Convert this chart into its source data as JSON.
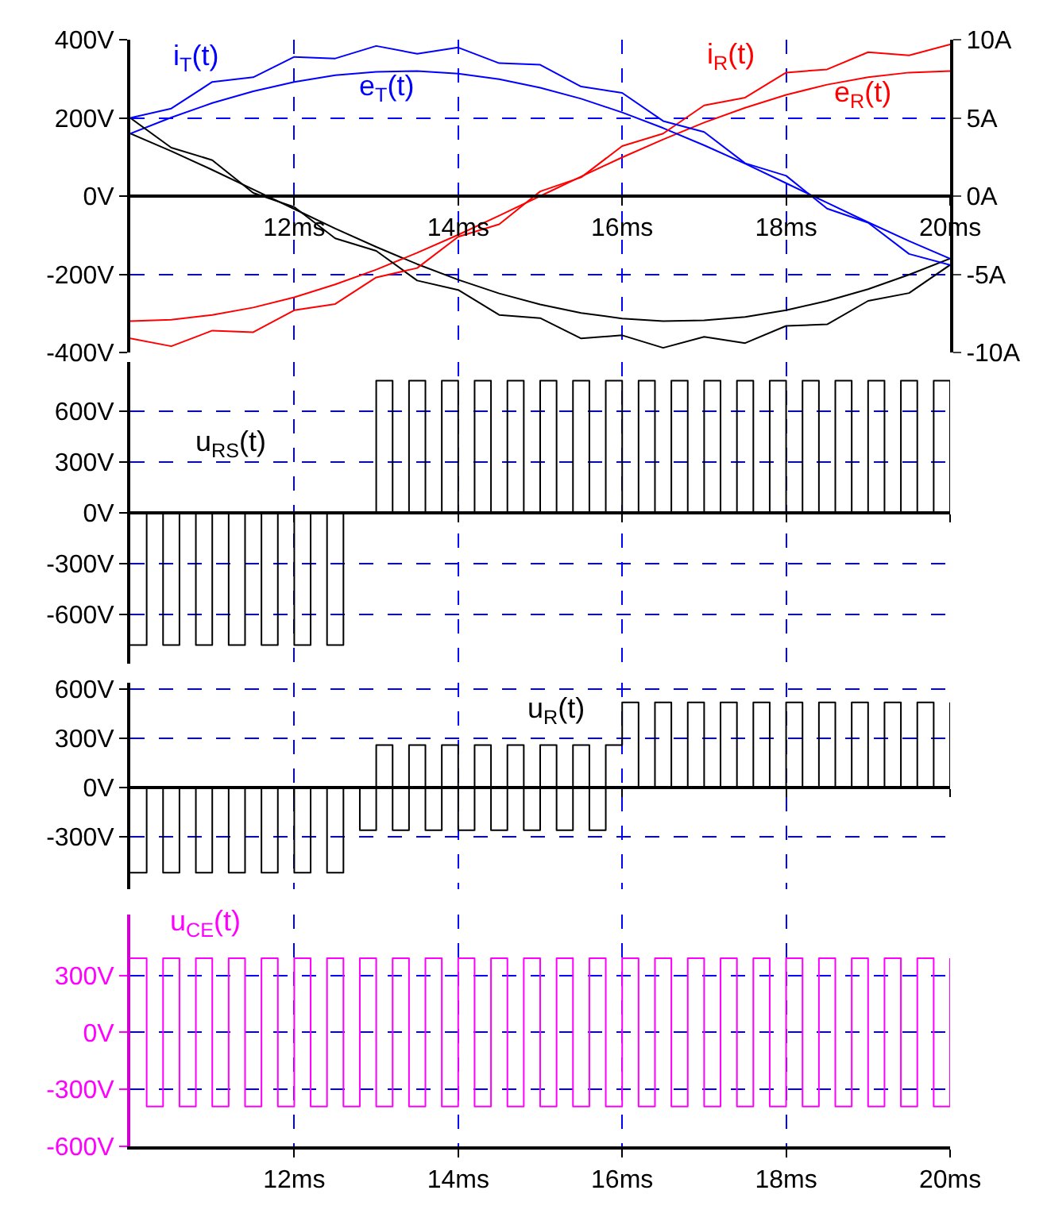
{
  "chart_data": [
    {
      "type": "line",
      "x": [
        10,
        10.5,
        11,
        11.5,
        12,
        12.5,
        13,
        13.5,
        14,
        14.5,
        15,
        15.5,
        16,
        16.5,
        17,
        17.5,
        18,
        18.5,
        19,
        19.5,
        20
      ],
      "xlim": [
        10,
        20
      ],
      "xticks": [
        {
          "value": 12,
          "label": "12ms"
        },
        {
          "value": 14,
          "label": "14ms"
        },
        {
          "value": 16,
          "label": "16ms"
        },
        {
          "value": 18,
          "label": "18ms"
        },
        {
          "value": 20,
          "label": "20ms"
        }
      ],
      "ylim": [
        -400,
        400
      ],
      "yticks": [
        {
          "value": -400,
          "label": "-400V"
        },
        {
          "value": -200,
          "label": "-200V"
        },
        {
          "value": 0,
          "label": "0V"
        },
        {
          "value": 200,
          "label": "200V"
        },
        {
          "value": 400,
          "label": "400V"
        }
      ],
      "y2lim": [
        -10,
        10
      ],
      "y2ticks": [
        {
          "value": -10,
          "label": "-10A"
        },
        {
          "value": -5,
          "label": "-5A"
        },
        {
          "value": 0,
          "label": "0A"
        },
        {
          "value": 5,
          "label": "5A"
        },
        {
          "value": 10,
          "label": "10A"
        }
      ],
      "grid": true,
      "series": [
        {
          "color": "#000000",
          "values": [
            160,
            115,
            67,
            17,
            -33,
            -83,
            -130,
            -174,
            -214,
            -249,
            -277,
            -299,
            -313,
            -320,
            -318,
            -309,
            -292,
            -268,
            -238,
            -201,
            -160
          ]
        },
        {
          "color": "#000000",
          "axis": "y2",
          "values": [
            5.0,
            3.1,
            2.3,
            0.2,
            -0.7,
            -2.7,
            -3.5,
            -5.4,
            -6.0,
            -7.6,
            -7.8,
            -9.1,
            -8.9,
            -9.7,
            -9.0,
            -9.4,
            -8.3,
            -8.2,
            -6.7,
            -6.2,
            -4.4
          ]
        },
        {
          "name": "e$_{R}$(t)",
          "color": "#ff0000",
          "values": [
            -320,
            -316,
            -304,
            -285,
            -259,
            -226,
            -188,
            -145,
            -99,
            -50,
            0,
            50,
            99,
            145,
            188,
            226,
            259,
            285,
            304,
            316,
            320
          ]
        },
        {
          "name": "i$_{R}$(t)",
          "color": "#ff0000",
          "axis": "y2",
          "values": [
            -9.1,
            -9.6,
            -8.6,
            -8.7,
            -7.3,
            -6.9,
            -5.2,
            -4.6,
            -2.6,
            -1.8,
            0.3,
            1.2,
            3.2,
            4.0,
            5.8,
            6.3,
            7.9,
            8.1,
            9.2,
            9.0,
            9.7
          ]
        },
        {
          "name": "e$_{T}$(t)",
          "color": "#0000ff",
          "values": [
            160,
            201,
            238,
            268,
            292,
            309,
            318,
            320,
            313,
            299,
            277,
            249,
            214,
            174,
            130,
            83,
            33,
            -17,
            -67,
            -115,
            -160
          ]
        },
        {
          "name": "i$_{T}$(t)",
          "color": "#0000ff",
          "axis": "y2",
          "values": [
            5.0,
            5.6,
            7.3,
            7.6,
            8.9,
            8.8,
            9.6,
            9.1,
            9.5,
            8.5,
            8.4,
            7.0,
            6.6,
            4.8,
            4.1,
            2.1,
            1.3,
            -0.8,
            -1.7,
            -3.7,
            -4.4
          ]
        }
      ]
    },
    {
      "type": "step",
      "x": [
        10,
        10.2,
        10.4,
        10.6,
        10.8,
        11,
        11.2,
        11.4,
        11.6,
        11.8,
        12,
        12.2,
        12.4,
        12.6,
        12.8,
        13,
        13.2,
        13.4,
        13.6,
        13.8,
        14,
        14.2,
        14.4,
        14.6,
        14.8,
        15,
        15.2,
        15.4,
        15.6,
        15.8,
        16,
        16.2,
        16.4,
        16.6,
        16.8,
        17,
        17.2,
        17.4,
        17.6,
        17.8,
        18,
        18.2,
        18.4,
        18.6,
        18.8,
        19,
        19.2,
        19.4,
        19.6,
        19.8,
        20
      ],
      "xlim": [
        10,
        20
      ],
      "xticks": [
        {
          "value": 12,
          "label": null
        },
        {
          "value": 14,
          "label": null
        },
        {
          "value": 16,
          "label": null
        },
        {
          "value": 18,
          "label": null
        },
        {
          "value": 20,
          "label": null
        }
      ],
      "ylim": [
        -890,
        890
      ],
      "yticks": [
        {
          "value": -600,
          "label": "-600V"
        },
        {
          "value": -300,
          "label": "-300V"
        },
        {
          "value": 0,
          "label": "0V"
        },
        {
          "value": 300,
          "label": "300V"
        },
        {
          "value": 600,
          "label": "600V"
        }
      ],
      "grid": true,
      "tick_labels": "y",
      "series": [
        {
          "name": "u$_{RS}$(t)",
          "color": "#000000",
          "values": [
            -780,
            0,
            -780,
            0,
            -780,
            0,
            -780,
            0,
            -780,
            0,
            -780,
            0,
            -780,
            0,
            0,
            780,
            0,
            780,
            0,
            780,
            0,
            780,
            0,
            780,
            0,
            780,
            0,
            780,
            0,
            780,
            0,
            780,
            0,
            780,
            0,
            780,
            0,
            780,
            0,
            780,
            0,
            780,
            0,
            780,
            0,
            780,
            0,
            780,
            0,
            780,
            0
          ]
        }
      ]
    },
    {
      "type": "step",
      "x": [
        10,
        10.2,
        10.4,
        10.6,
        10.8,
        11,
        11.2,
        11.4,
        11.6,
        11.8,
        12,
        12.2,
        12.4,
        12.6,
        12.8,
        13,
        13.2,
        13.4,
        13.6,
        13.8,
        14,
        14.2,
        14.4,
        14.6,
        14.8,
        15,
        15.2,
        15.4,
        15.6,
        15.8,
        16,
        16.2,
        16.4,
        16.6,
        16.8,
        17,
        17.2,
        17.4,
        17.6,
        17.8,
        18,
        18.2,
        18.4,
        18.6,
        18.8,
        19,
        19.2,
        19.4,
        19.6,
        19.8,
        20
      ],
      "xlim": [
        10,
        20
      ],
      "xticks": [
        {
          "value": 12,
          "label": null
        },
        {
          "value": 14,
          "label": null
        },
        {
          "value": 16,
          "label": null
        },
        {
          "value": 18,
          "label": null
        },
        {
          "value": 20,
          "label": null
        }
      ],
      "ylim": [
        -620,
        640
      ],
      "yticks": [
        {
          "value": -300,
          "label": "-300V"
        },
        {
          "value": 0,
          "label": "0V"
        },
        {
          "value": 300,
          "label": "300V"
        },
        {
          "value": 600,
          "label": "600V"
        }
      ],
      "grid": true,
      "tick_labels": "y",
      "series": [
        {
          "name": "u$_{R}$(t)",
          "color": "#000000",
          "values": [
            -520,
            0,
            -520,
            0,
            -520,
            0,
            -520,
            0,
            -520,
            0,
            -520,
            0,
            -520,
            0,
            -260,
            260,
            -260,
            260,
            -260,
            260,
            -260,
            260,
            -260,
            260,
            -260,
            260,
            -260,
            260,
            -260,
            260,
            520,
            0,
            520,
            0,
            520,
            0,
            520,
            0,
            520,
            0,
            520,
            0,
            520,
            0,
            520,
            0,
            520,
            0,
            520,
            0,
            520
          ]
        }
      ]
    },
    {
      "type": "step",
      "x": [
        10,
        10.2,
        10.4,
        10.6,
        10.8,
        11,
        11.2,
        11.4,
        11.6,
        11.8,
        12,
        12.2,
        12.4,
        12.6,
        12.8,
        13,
        13.2,
        13.4,
        13.6,
        13.8,
        14,
        14.2,
        14.4,
        14.6,
        14.8,
        15,
        15.2,
        15.4,
        15.6,
        15.8,
        16,
        16.2,
        16.4,
        16.6,
        16.8,
        17,
        17.2,
        17.4,
        17.6,
        17.8,
        18,
        18.2,
        18.4,
        18.6,
        18.8,
        19,
        19.2,
        19.4,
        19.6,
        19.8,
        20
      ],
      "xlim": [
        10,
        20
      ],
      "xticks": [
        {
          "value": 12,
          "label": "12ms"
        },
        {
          "value": 14,
          "label": "14ms"
        },
        {
          "value": 16,
          "label": "16ms"
        },
        {
          "value": 18,
          "label": "18ms"
        },
        {
          "value": 20,
          "label": "20ms"
        }
      ],
      "ylim": [
        -600,
        620
      ],
      "yticks": [
        {
          "value": -600,
          "label": "-600V"
        },
        {
          "value": -300,
          "label": "-300V"
        },
        {
          "value": 0,
          "label": "0V"
        },
        {
          "value": 300,
          "label": "300V"
        }
      ],
      "grid": true,
      "series": [
        {
          "name": "u$_{CE}$(t)",
          "color": "#ff00ff",
          "values": [
            390,
            -390,
            390,
            -390,
            390,
            -390,
            390,
            -390,
            390,
            -390,
            390,
            -390,
            390,
            -390,
            390,
            -390,
            390,
            -390,
            390,
            -390,
            390,
            -390,
            390,
            -390,
            390,
            -390,
            390,
            -390,
            390,
            -390,
            390,
            -390,
            390,
            -390,
            390,
            -390,
            390,
            -390,
            390,
            -390,
            390,
            -390,
            390,
            -390,
            390,
            -390,
            390,
            -390,
            390,
            -390,
            390
          ]
        }
      ]
    }
  ]
}
